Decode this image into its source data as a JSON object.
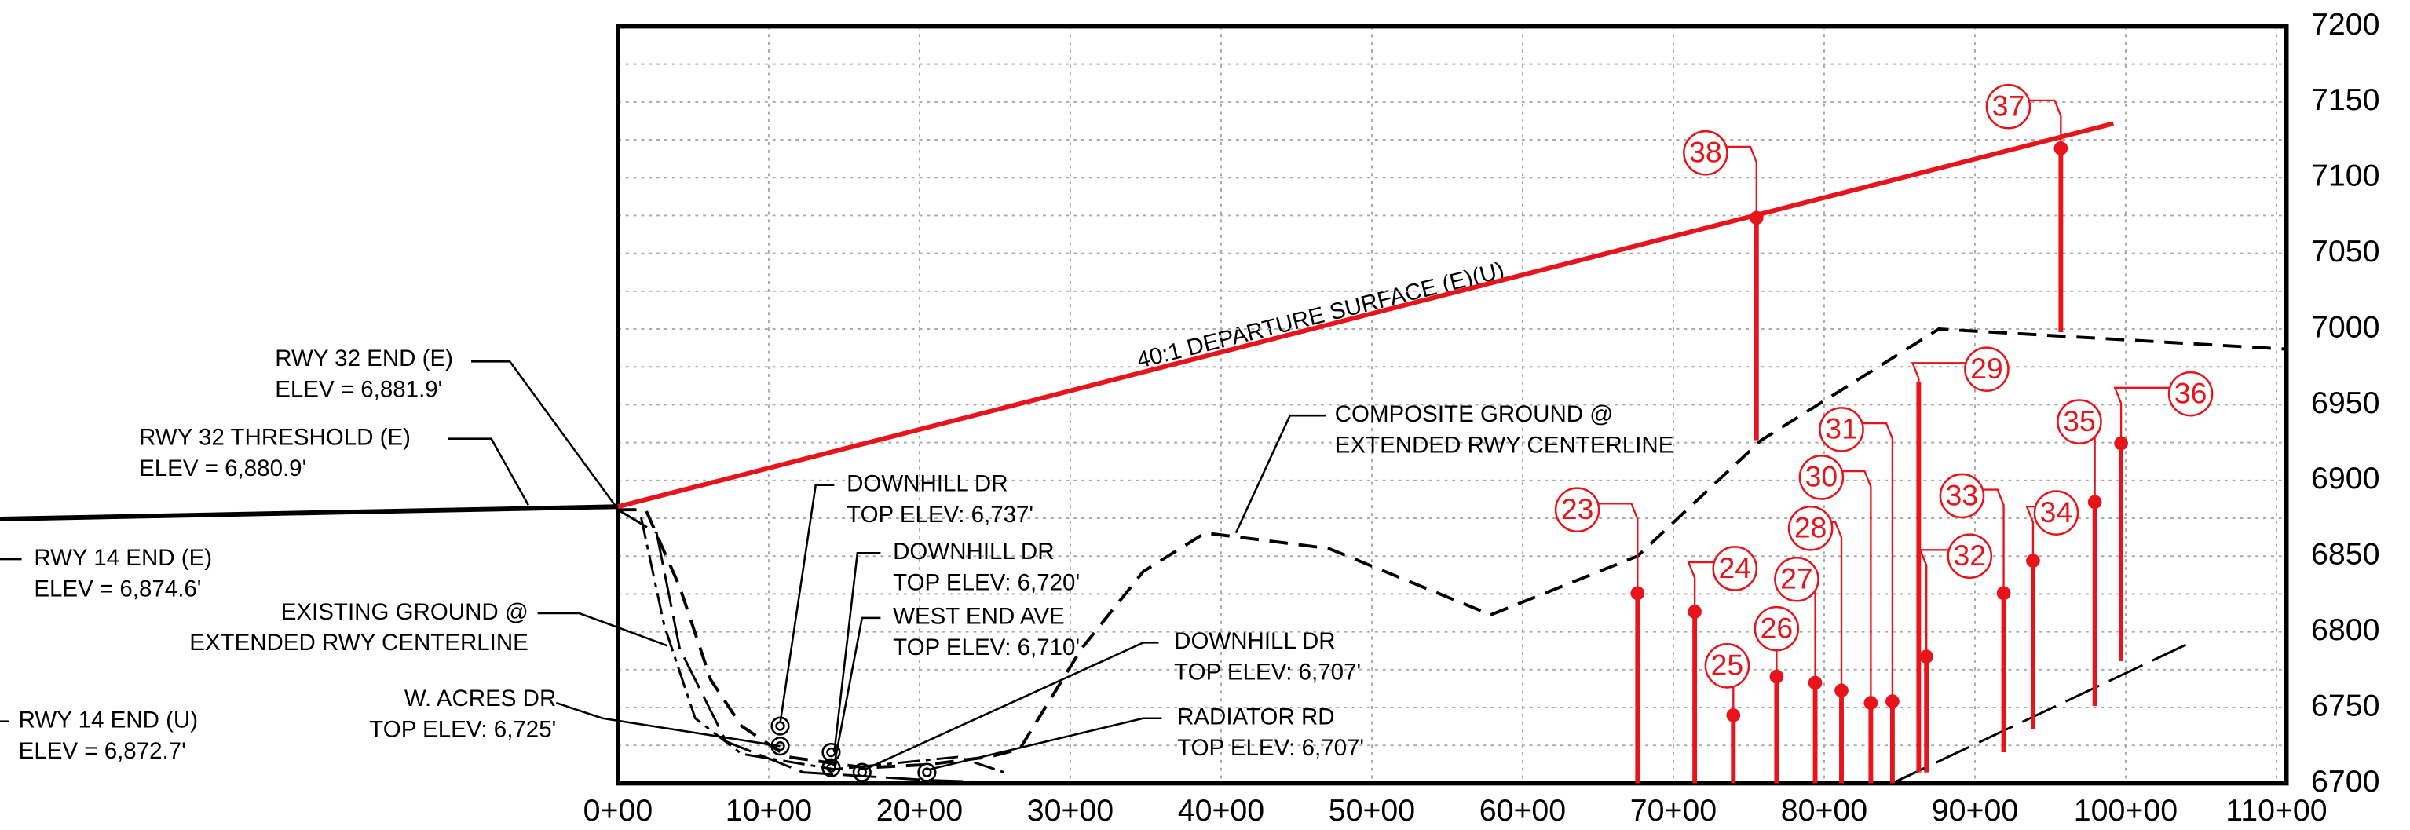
{
  "x_axis": {
    "ticks": [
      "0+00",
      "10+00",
      "20+00",
      "30+00",
      "40+00",
      "50+00",
      "60+00",
      "70+00",
      "80+00",
      "90+00",
      "100+00",
      "110+00"
    ]
  },
  "y_axis": {
    "ticks": [
      "7200",
      "7150",
      "7100",
      "7050",
      "7000",
      "6950",
      "6900",
      "6850",
      "6800",
      "6750",
      "6700"
    ]
  },
  "surface_label": "40:1 DEPARTURE SURFACE (E)(U)",
  "annotations": [
    {
      "lines": [
        "RWY 32 END (E)",
        "ELEV = 6,881.9'"
      ]
    },
    {
      "lines": [
        "RWY 32 THRESHOLD (E)",
        "ELEV = 6,880.9'"
      ]
    },
    {
      "lines": [
        "RWY 14 END (E)",
        "ELEV = 6,874.6'"
      ]
    },
    {
      "lines": [
        "EXISTING GROUND @",
        "EXTENDED RWY CENTERLINE"
      ]
    },
    {
      "lines": [
        "RWY 14 END (U)",
        "ELEV = 6,872.7'"
      ]
    },
    {
      "lines": [
        "W. ACRES DR",
        "TOP ELEV: 6,725'"
      ]
    },
    {
      "lines": [
        "DOWNHILL DR",
        "TOP ELEV: 6,737'"
      ]
    },
    {
      "lines": [
        "DOWNHILL DR",
        "TOP ELEV: 6,720'"
      ]
    },
    {
      "lines": [
        "WEST END AVE",
        "TOP ELEV: 6,710'"
      ]
    },
    {
      "lines": [
        "DOWNHILL DR",
        "TOP ELEV: 6,707'"
      ]
    },
    {
      "lines": [
        "RADIATOR RD",
        "TOP ELEV: 6,707'"
      ]
    },
    {
      "lines": [
        "COMPOSITE GROUND @",
        "EXTENDED RWY CENTERLINE"
      ]
    }
  ],
  "obstacles": [
    "23",
    "24",
    "25",
    "26",
    "27",
    "28",
    "29",
    "30",
    "31",
    "32",
    "33",
    "34",
    "35",
    "36",
    "37",
    "38"
  ]
}
